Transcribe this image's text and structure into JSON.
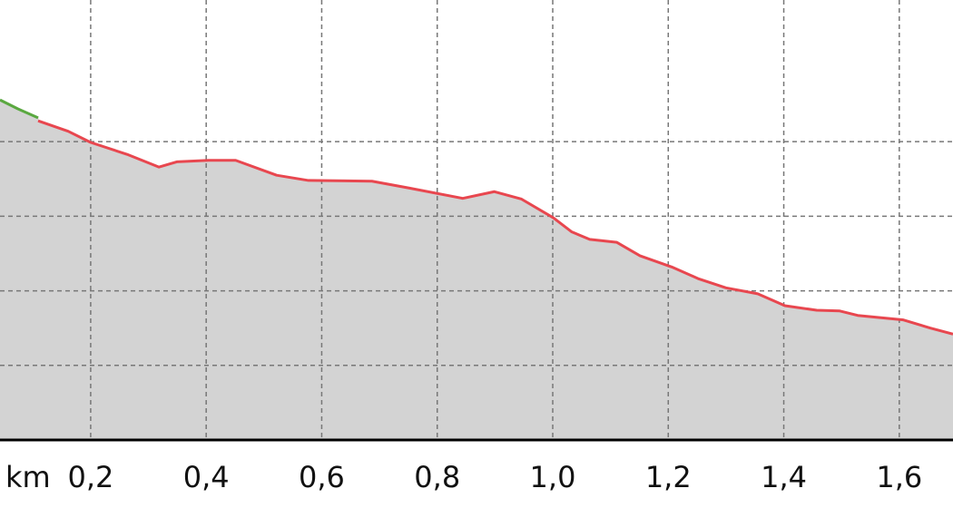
{
  "chart_data": {
    "type": "area-line",
    "x_label": "km",
    "xlim": [
      0.043,
      1.693
    ],
    "ylim": [
      0,
      5.9
    ],
    "xticks": [
      {
        "value": 0.2,
        "label": "0,2"
      },
      {
        "value": 0.4,
        "label": "0,4"
      },
      {
        "value": 0.6,
        "label": "0,6"
      },
      {
        "value": 0.8,
        "label": "0,8"
      },
      {
        "value": 1.0,
        "label": "1,0"
      },
      {
        "value": 1.2,
        "label": "1,2"
      },
      {
        "value": 1.4,
        "label": "1,4"
      },
      {
        "value": 1.6,
        "label": "1,6"
      }
    ],
    "yticks": [
      1,
      2,
      3,
      4
    ],
    "grid": true,
    "fill": "#d3d3d3",
    "series": [
      {
        "color": "#5aa840",
        "x": [
          0.043,
          0.074,
          0.109
        ],
        "values": [
          4.56,
          4.44,
          4.32
        ]
      },
      {
        "color": "#e8474f",
        "x": [
          0.109,
          0.161,
          0.2,
          0.263,
          0.318,
          0.349,
          0.404,
          0.451,
          0.522,
          0.577,
          0.687,
          0.75,
          0.844,
          0.899,
          0.946,
          1.001,
          1.033,
          1.064,
          1.111,
          1.151,
          1.206,
          1.253,
          1.3,
          1.355,
          1.402,
          1.457,
          1.497,
          1.528,
          1.607,
          1.654,
          1.693
        ],
        "values": [
          4.28,
          4.14,
          3.99,
          3.83,
          3.66,
          3.73,
          3.75,
          3.75,
          3.55,
          3.48,
          3.47,
          3.38,
          3.24,
          3.33,
          3.23,
          2.98,
          2.79,
          2.69,
          2.65,
          2.47,
          2.32,
          2.16,
          2.04,
          1.96,
          1.8,
          1.74,
          1.73,
          1.67,
          1.61,
          1.5,
          1.42
        ]
      }
    ]
  }
}
